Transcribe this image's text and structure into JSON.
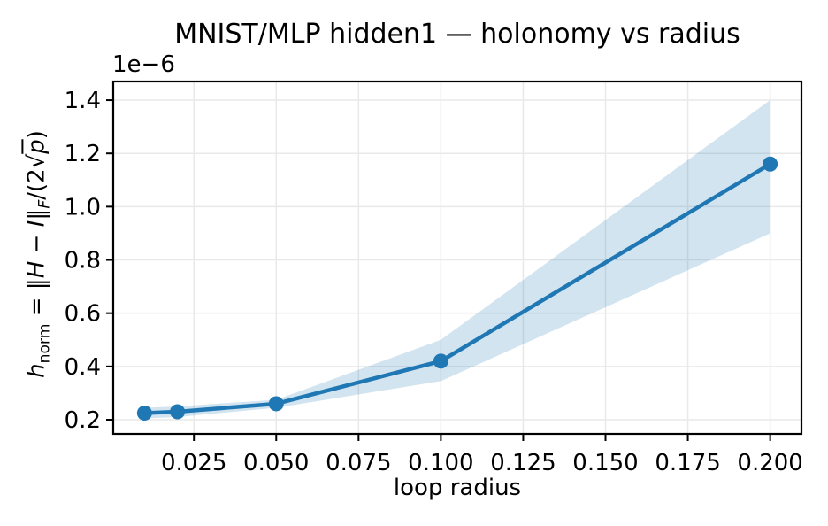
{
  "figure": {
    "background": "#ffffff"
  },
  "chart_data": {
    "type": "line",
    "title": "MNIST/MLP hidden1 — holonomy vs radius",
    "xlabel": "loop radius",
    "ylabel_text": "h_norm = ‖H − I‖_F/(2√p)",
    "ylabel_parts": {
      "h": "h",
      "h_sub": "norm",
      "eq": " = ",
      "dbar_open": "‖",
      "H": "H",
      "minus": " − ",
      "I": "I",
      "dbar_close": "‖",
      "f_sub": "F",
      "den_pre": "/(2√",
      "p": "p",
      "den_post": ")"
    },
    "y_offset_text": "1e−6",
    "x_ticks": {
      "values": [
        0.025,
        0.05,
        0.075,
        0.1,
        0.125,
        0.15,
        0.175,
        0.2
      ],
      "labels": [
        "0.025",
        "0.050",
        "0.075",
        "0.100",
        "0.125",
        "0.150",
        "0.175",
        "0.200"
      ]
    },
    "y_ticks": {
      "values": [
        0.2,
        0.4,
        0.6,
        0.8,
        1.0,
        1.2,
        1.4
      ],
      "labels": [
        "0.2",
        "0.4",
        "0.6",
        "0.8",
        "1.0",
        "1.2",
        "1.4"
      ]
    },
    "xlim": [
      0.0005,
      0.2095
    ],
    "ylim": [
      0.1468,
      1.47
    ],
    "grid": true,
    "legend": false,
    "series": [
      {
        "x": [
          0.01,
          0.02,
          0.05,
          0.1,
          0.2
        ],
        "y": [
          0.225,
          0.23,
          0.26,
          0.42,
          1.16
        ],
        "band_lower": [
          0.205,
          0.21,
          0.245,
          0.345,
          0.9
        ],
        "band_upper": [
          0.245,
          0.25,
          0.275,
          0.5,
          1.4
        ],
        "marker": "circle"
      }
    ],
    "colors": {
      "line": "#1f77b4",
      "band": "#1f77b4",
      "band_opacity": 0.2,
      "grid": "#e9e9e9",
      "spine": "#000000",
      "text": "#000000"
    }
  }
}
